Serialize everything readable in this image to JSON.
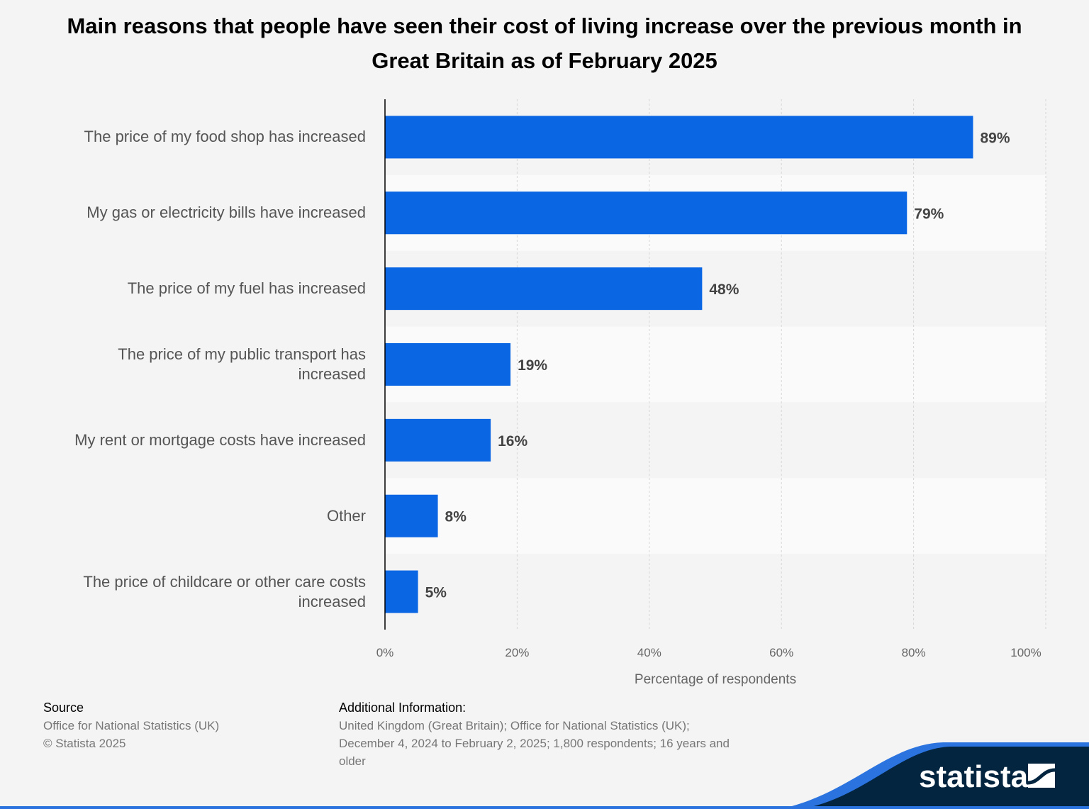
{
  "title": "Main reasons that people have seen their cost of living increase over the previous month in Great Britain as of February 2025",
  "chart_data": {
    "type": "bar",
    "orientation": "horizontal",
    "title": "Main reasons that people have seen their cost of living increase over the previous month in Great Britain as of February 2025",
    "categories": [
      "The price of my food shop has increased",
      "My gas or electricity bills have increased",
      "The price of my fuel has increased",
      "The price of my public transport has increased",
      "My rent or mortgage costs have increased",
      "Other",
      "The price of childcare or other care costs increased"
    ],
    "values": [
      89,
      79,
      48,
      19,
      16,
      8,
      5
    ],
    "data_labels": [
      "89%",
      "79%",
      "48%",
      "19%",
      "16%",
      "8%",
      "5%"
    ],
    "xlabel": "Percentage of respondents",
    "ylabel": "",
    "xlim": [
      0,
      100
    ],
    "ticks": [
      "0%",
      "20%",
      "40%",
      "60%",
      "80%",
      "100%"
    ],
    "grid": true,
    "bar_color": "#0b66e4"
  },
  "footer": {
    "source_heading": "Source",
    "source_lines": [
      "Office for National Statistics (UK)",
      "© Statista 2025"
    ],
    "info_heading": "Additional Information:",
    "info_lines": [
      "United Kingdom (Great Britain); Office for National Statistics (UK);",
      "December 4, 2024 to February 2, 2025; 1,800 respondents; 16 years and",
      "older"
    ],
    "logo_text": "statista"
  }
}
